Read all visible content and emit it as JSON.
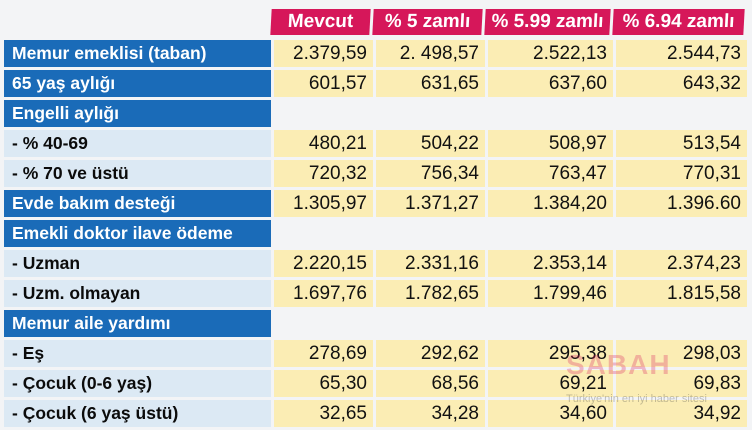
{
  "columns": [
    "Mevcut",
    "% 5 zamlı",
    "% 5.99 zamlı",
    "% 6.94 zamlı"
  ],
  "rows": [
    {
      "label": "Memur emeklisi (taban)",
      "style": "blue",
      "values": [
        "2.379,59",
        "2. 498,57",
        "2.522,13",
        "2.544,73"
      ]
    },
    {
      "label": "65 yaş aylığı",
      "style": "blue",
      "values": [
        "601,57",
        "631,65",
        "637,60",
        "643,32"
      ]
    },
    {
      "label": "Engelli aylığı",
      "style": "blue",
      "values": [
        "",
        "",
        "",
        ""
      ]
    },
    {
      "label": "- % 40-69",
      "style": "pale",
      "values": [
        "480,21",
        "504,22",
        "508,97",
        "513,54"
      ]
    },
    {
      "label": "- % 70 ve üstü",
      "style": "pale",
      "values": [
        "720,32",
        "756,34",
        "763,47",
        "770,31"
      ]
    },
    {
      "label": "Evde bakım desteği",
      "style": "blue",
      "values": [
        "1.305,97",
        "1.371,27",
        "1.384,20",
        "1.396.60"
      ]
    },
    {
      "label": "Emekli doktor ilave ödeme",
      "style": "blue",
      "values": [
        "",
        "",
        "",
        ""
      ]
    },
    {
      "label": "- Uzman",
      "style": "pale",
      "values": [
        "2.220,15",
        "2.331,16",
        "2.353,14",
        "2.374,23"
      ]
    },
    {
      "label": "- Uzm. olmayan",
      "style": "pale",
      "values": [
        "1.697,76",
        "1.782,65",
        "1.799,46",
        "1.815,58"
      ]
    },
    {
      "label": "Memur aile yardımı",
      "style": "blue",
      "values": [
        "",
        "",
        "",
        ""
      ]
    },
    {
      "label": "- Eş",
      "style": "pale",
      "values": [
        "278,69",
        "292,62",
        "295,38",
        "298,03"
      ]
    },
    {
      "label": "- Çocuk (0-6 yaş)",
      "style": "pale",
      "values": [
        "65,30",
        "68,56",
        "69,21",
        "69,83"
      ]
    },
    {
      "label": "- Çocuk (6 yaş üstü)",
      "style": "pale",
      "values": [
        "32,65",
        "34,28",
        "34,60",
        "34,92"
      ]
    }
  ],
  "watermark": {
    "brand": "SABAH",
    "tagline": "Türkiye'nin en iyi haber sitesi"
  },
  "colors": {
    "header_bg": "#d6175a",
    "label_blue": "#1a6bb8",
    "label_pale": "#dce9f4",
    "value_bg": "#fbedb4"
  }
}
